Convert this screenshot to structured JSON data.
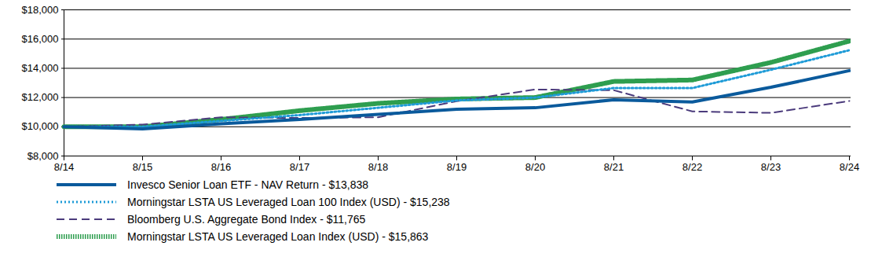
{
  "chart_data": {
    "type": "line",
    "categories": [
      "8/14",
      "8/15",
      "8/16",
      "8/17",
      "8/18",
      "8/19",
      "8/20",
      "8/21",
      "8/22",
      "8/23",
      "8/24"
    ],
    "ylim": [
      8000,
      18000
    ],
    "yticks": [
      {
        "value": 8000,
        "label": "$8,000"
      },
      {
        "value": 10000,
        "label": "$10,000"
      },
      {
        "value": 12000,
        "label": "$12,000"
      },
      {
        "value": 14000,
        "label": "$14,000"
      },
      {
        "value": 16000,
        "label": "$16,000"
      },
      {
        "value": 18000,
        "label": "$18,000"
      }
    ],
    "grid": true,
    "legend": "bottom",
    "series": [
      {
        "name": "Invesco Senior Loan ETF - NAV Return - $13,838",
        "color": "#0a5a9c",
        "line_style": "solid",
        "values": [
          10000,
          9850,
          10200,
          10500,
          10850,
          11200,
          11300,
          11850,
          11700,
          12700,
          13838
        ]
      },
      {
        "name": "Morningstar LSTA US Leveraged Loan 100 Index (USD) - $15,238",
        "color": "#1e9bd7",
        "line_style": "dotted",
        "values": [
          10000,
          10000,
          10400,
          10800,
          11300,
          11800,
          12000,
          12650,
          12650,
          13900,
          15238
        ]
      },
      {
        "name": "Bloomberg U.S. Aggregate Bond Index - $11,765",
        "color": "#4b3b7c",
        "line_style": "dashed",
        "values": [
          10000,
          10150,
          10650,
          10600,
          10650,
          11750,
          12550,
          12500,
          11050,
          10950,
          11765
        ]
      },
      {
        "name": "Morningstar LSTA US Leveraged Loan Index (USD) - $15,863",
        "color": "#2e9e4f",
        "line_style": "dotted",
        "values": [
          10000,
          10000,
          10500,
          11100,
          11600,
          11900,
          12000,
          13100,
          13200,
          14400,
          15863
        ]
      }
    ]
  }
}
